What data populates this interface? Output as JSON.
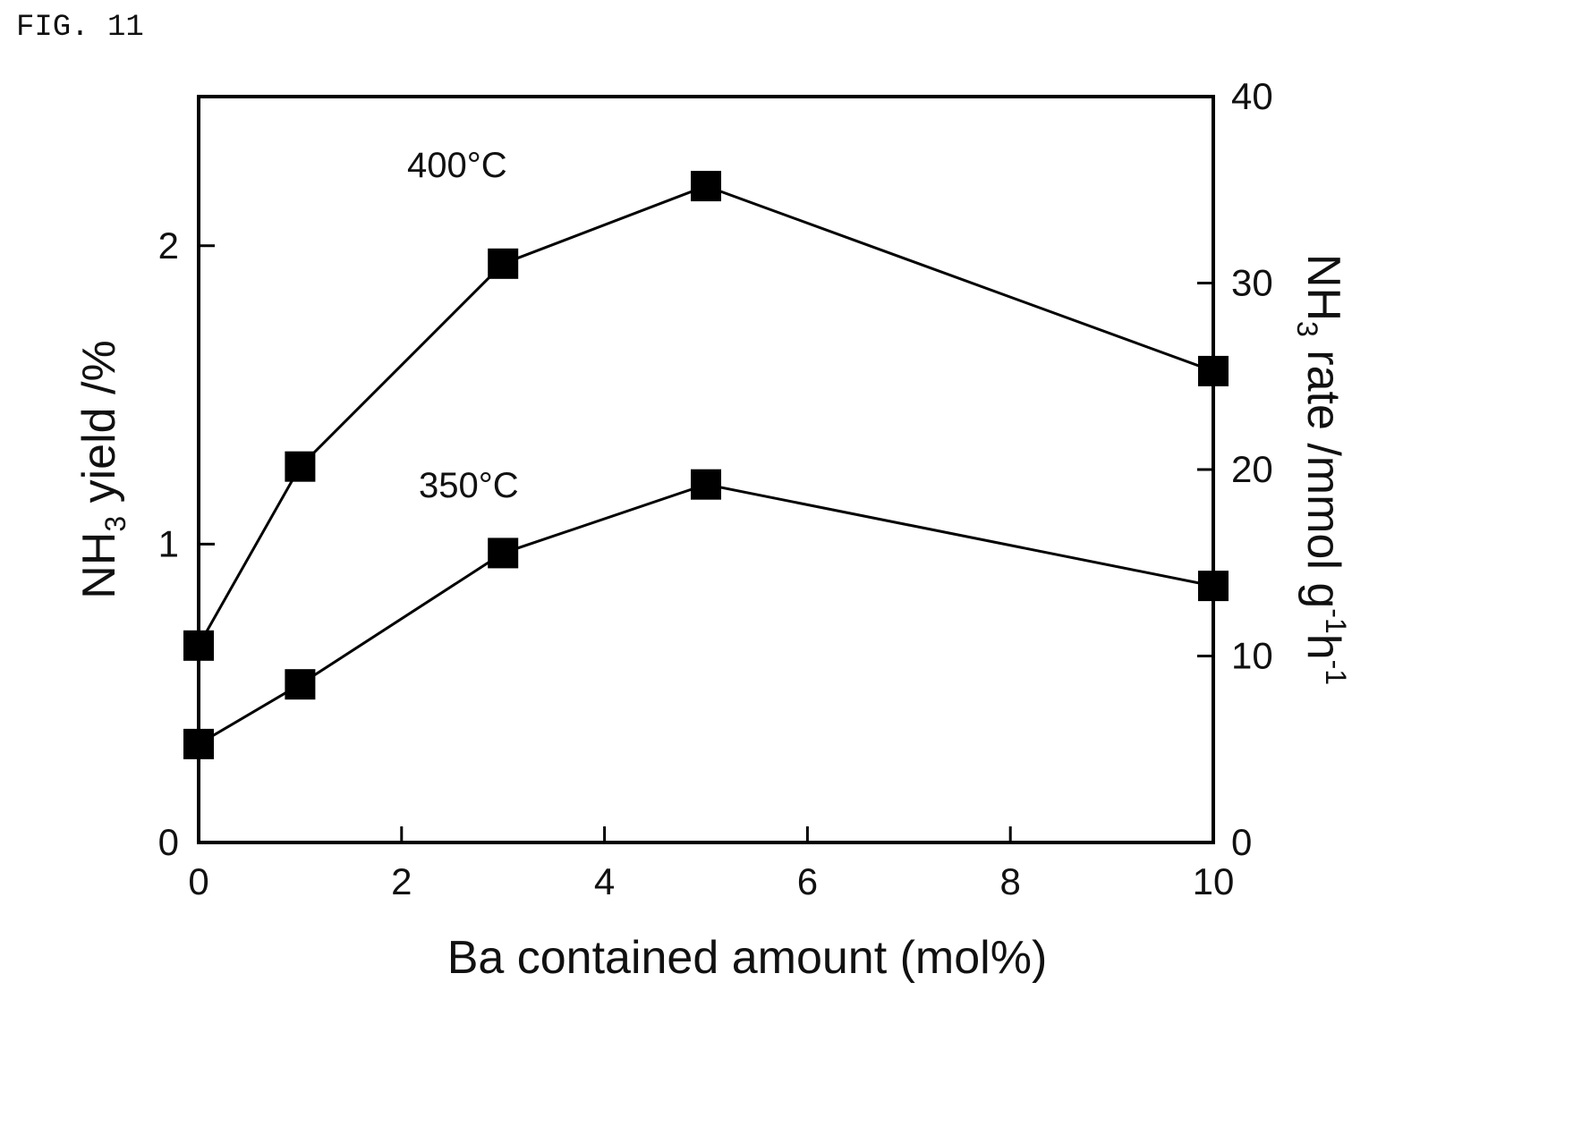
{
  "figure_label": "FIG. 11",
  "chart_data": {
    "type": "line",
    "xlabel": "Ba contained amount (mol%)",
    "ylabel_left": {
      "main": "NH",
      "sub": "3",
      "rest": " yield /%"
    },
    "ylabel_right": {
      "main": "NH",
      "sub": "3",
      "rest": " rate /mmol g",
      "sup1": "-1",
      "mid": "h",
      "sup2": "-1"
    },
    "xlim": [
      0,
      10
    ],
    "ylim_left": [
      0,
      2.5
    ],
    "ylim_right": [
      0,
      40
    ],
    "x_ticks": [
      0,
      2,
      4,
      6,
      8,
      10
    ],
    "x_tick_labels": [
      "0",
      "2",
      "4",
      "6",
      "8",
      "10"
    ],
    "y_left_ticks": [
      0,
      1,
      2
    ],
    "y_left_tick_labels": [
      "0",
      "1",
      "2"
    ],
    "y_right_ticks": [
      0,
      10,
      20,
      30,
      40
    ],
    "y_right_tick_labels": [
      "0",
      "10",
      "20",
      "30",
      "40"
    ],
    "grid": false,
    "series": [
      {
        "name": "400°C",
        "x": [
          0,
          1,
          3,
          5,
          10
        ],
        "y": [
          0.66,
          1.26,
          1.94,
          2.2,
          1.58
        ]
      },
      {
        "name": "350°C",
        "x": [
          0,
          1,
          3,
          5,
          10
        ],
        "y": [
          0.33,
          0.53,
          0.97,
          1.2,
          0.86
        ]
      }
    ],
    "annotations": [
      "400°C",
      "350°C"
    ]
  }
}
